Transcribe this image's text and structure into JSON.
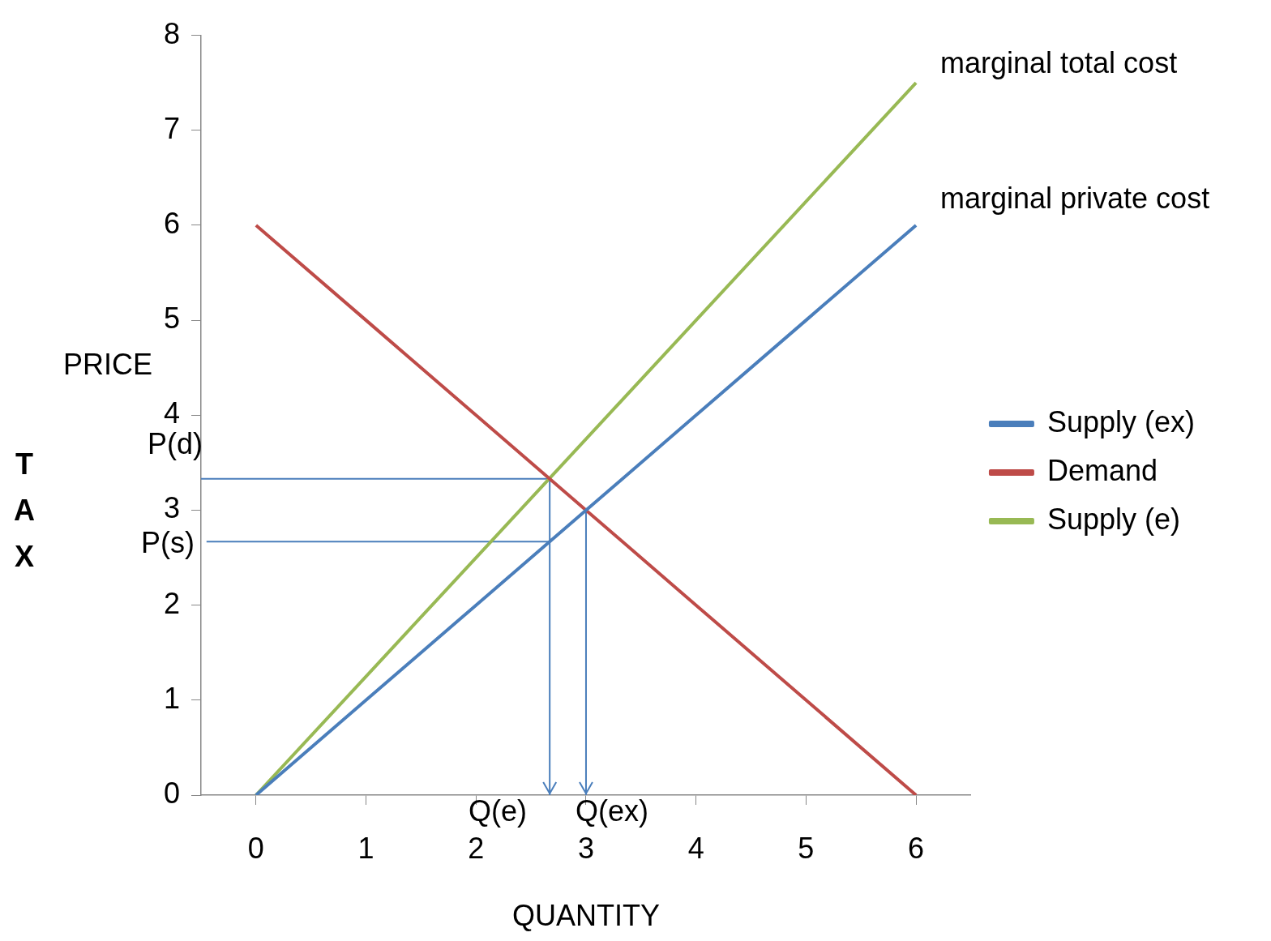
{
  "chart_data": {
    "type": "line",
    "xlabel": "QUANTITY",
    "ylabel": "PRICE",
    "x": [
      0,
      1,
      2,
      3,
      4,
      5,
      6
    ],
    "xlim": [
      -0.5,
      6.5
    ],
    "xticks": [
      0,
      1,
      2,
      3,
      4,
      5,
      6
    ],
    "ylim": [
      0,
      8
    ],
    "yticks": [
      0,
      1,
      2,
      3,
      4,
      5,
      6,
      7,
      8
    ],
    "grid": false,
    "legend": "right",
    "marker": "none",
    "line_style": "solid",
    "series": [
      {
        "name": "Supply (ex)",
        "color": "#4a7ebb",
        "values": [
          0,
          1,
          2,
          3,
          4,
          5,
          6
        ]
      },
      {
        "name": "Demand",
        "color": "#be4b48",
        "values": [
          6,
          5,
          4,
          3,
          2,
          1,
          0
        ]
      },
      {
        "name": "Supply (e)",
        "color": "#98b954",
        "values": [
          0,
          1.25,
          2.5,
          3.75,
          5,
          6.25,
          7.5
        ]
      },
      {
        "color": "#4a7ebb",
        "x": [
          -0.5,
          2.67
        ],
        "values": [
          3.33,
          3.33
        ]
      },
      {
        "color": "#4a7ebb",
        "x": [
          2.67,
          2.67
        ],
        "values": [
          3.33,
          0
        ]
      },
      {
        "color": "#4a7ebb",
        "x": [
          -0.45,
          2.67
        ],
        "values": [
          2.67,
          2.67
        ]
      },
      {
        "color": "#4a7ebb",
        "x": [
          3,
          3
        ],
        "values": [
          3,
          0
        ]
      }
    ],
    "annotations": [
      "marginal total cost",
      "marginal private cost",
      "P(d)",
      "P(s)",
      "Q(e)",
      "Q(ex)",
      "TAX"
    ]
  }
}
